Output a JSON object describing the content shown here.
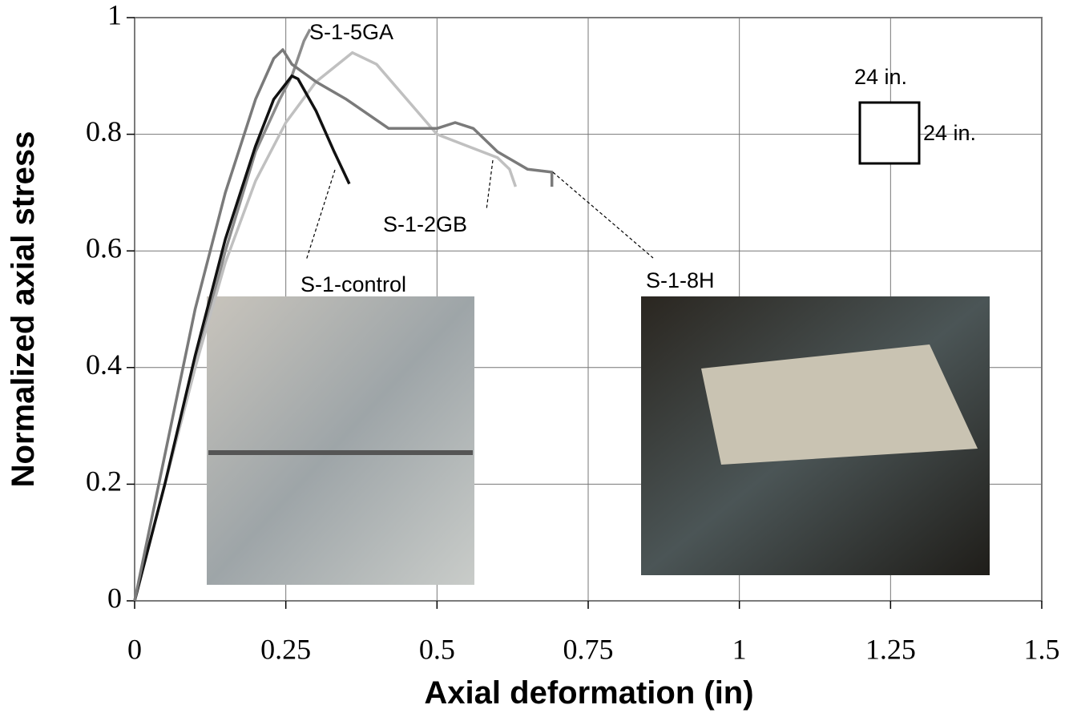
{
  "chart_data": {
    "type": "line",
    "x_label": "Axial deformation (in)",
    "y_label": "Normalized axial stress",
    "xlim": [
      0,
      1.5
    ],
    "xticks": [
      0,
      0.25,
      0.5,
      0.75,
      1,
      1.25,
      1.5
    ],
    "ylim": [
      0,
      1
    ],
    "yticks": [
      0,
      0.2,
      0.4,
      0.6,
      0.8,
      1
    ],
    "grid": true,
    "series": [
      {
        "name": "S-1-5GA",
        "color": "#8c8c8c",
        "x": [
          0,
          0.05,
          0.1,
          0.15,
          0.2,
          0.24,
          0.26,
          0.28,
          0.29
        ],
        "values": [
          0,
          0.2,
          0.4,
          0.6,
          0.77,
          0.86,
          0.9,
          0.96,
          0.98
        ]
      },
      {
        "name": "S-1-2GB",
        "color": "#c0c0c0",
        "x": [
          0,
          0.05,
          0.1,
          0.15,
          0.2,
          0.25,
          0.3,
          0.36,
          0.4,
          0.45,
          0.5,
          0.55,
          0.6,
          0.62,
          0.63
        ],
        "values": [
          0,
          0.2,
          0.4,
          0.58,
          0.72,
          0.82,
          0.89,
          0.94,
          0.92,
          0.86,
          0.8,
          0.78,
          0.76,
          0.74,
          0.71
        ]
      },
      {
        "name": "S-1-control",
        "color": "#111111",
        "x": [
          0,
          0.05,
          0.1,
          0.15,
          0.2,
          0.23,
          0.26,
          0.27,
          0.3,
          0.33,
          0.355
        ],
        "values": [
          0,
          0.2,
          0.42,
          0.62,
          0.78,
          0.86,
          0.9,
          0.895,
          0.84,
          0.77,
          0.715
        ]
      },
      {
        "name": "S-1-8H",
        "color": "#7a7a7a",
        "x": [
          0,
          0.05,
          0.1,
          0.15,
          0.2,
          0.23,
          0.245,
          0.26,
          0.3,
          0.35,
          0.42,
          0.5,
          0.53,
          0.56,
          0.6,
          0.65,
          0.69,
          0.69
        ],
        "values": [
          0,
          0.25,
          0.5,
          0.7,
          0.86,
          0.93,
          0.945,
          0.92,
          0.89,
          0.86,
          0.81,
          0.81,
          0.82,
          0.81,
          0.77,
          0.74,
          0.735,
          0.71
        ]
      }
    ],
    "annotations": [
      "24 in.",
      "24 in."
    ]
  }
}
